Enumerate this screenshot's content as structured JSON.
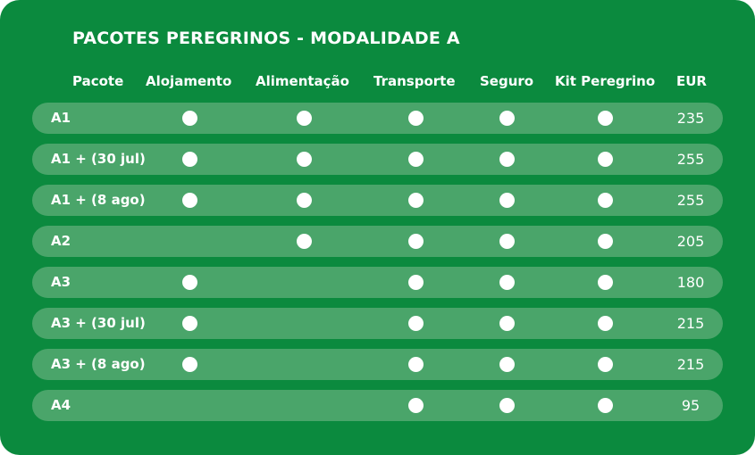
{
  "title": "PACOTES PEREGRINOS - MODALIDADE A",
  "headers": {
    "pacote": "Pacote",
    "alojamento": "Alojamento",
    "alimentacao": "Alimentação",
    "transporte": "Transporte",
    "seguro": "Seguro",
    "kit": "Kit Peregrino",
    "eur": "EUR"
  },
  "colors": {
    "background": "#0b8a3e",
    "row": "#4aa56a",
    "text": "#ffffff"
  },
  "included_marker": "filled-circle-icon",
  "rows": [
    {
      "pacote": "A1",
      "alojamento": true,
      "alimentacao": true,
      "transporte": true,
      "seguro": true,
      "kit": true,
      "eur": "235"
    },
    {
      "pacote": "A1 + (30 jul)",
      "alojamento": true,
      "alimentacao": true,
      "transporte": true,
      "seguro": true,
      "kit": true,
      "eur": "255"
    },
    {
      "pacote": "A1 + (8 ago)",
      "alojamento": true,
      "alimentacao": true,
      "transporte": true,
      "seguro": true,
      "kit": true,
      "eur": "255"
    },
    {
      "pacote": "A2",
      "alojamento": false,
      "alimentacao": true,
      "transporte": true,
      "seguro": true,
      "kit": true,
      "eur": "205"
    },
    {
      "pacote": "A3",
      "alojamento": true,
      "alimentacao": false,
      "transporte": true,
      "seguro": true,
      "kit": true,
      "eur": "180"
    },
    {
      "pacote": "A3 + (30 jul)",
      "alojamento": true,
      "alimentacao": false,
      "transporte": true,
      "seguro": true,
      "kit": true,
      "eur": "215"
    },
    {
      "pacote": "A3 + (8 ago)",
      "alojamento": true,
      "alimentacao": false,
      "transporte": true,
      "seguro": true,
      "kit": true,
      "eur": "215"
    },
    {
      "pacote": "A4",
      "alojamento": false,
      "alimentacao": false,
      "transporte": true,
      "seguro": true,
      "kit": true,
      "eur": "95"
    }
  ]
}
